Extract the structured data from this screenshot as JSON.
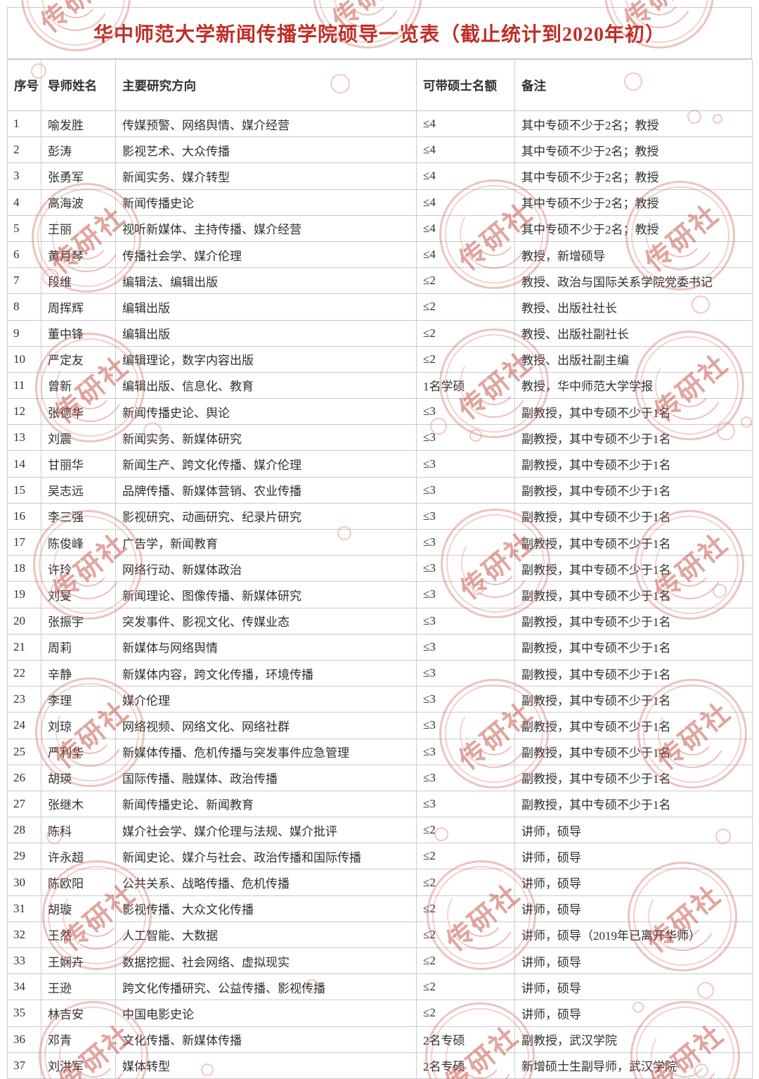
{
  "title": "华中师范大学新闻传播学院硕导一览表（截止统计到2020年初）",
  "colors": {
    "title_red": "#bf2e26",
    "watermark_pink": "#d3685e",
    "border_gray": "#cbcbcb",
    "body_text": "#303030"
  },
  "watermark": {
    "stamp_text": "传研社"
  },
  "table": {
    "headers": [
      "序号",
      "导师姓名",
      "主要研究方向",
      "可带硕士名额",
      "备注"
    ],
    "rows": [
      [
        "1",
        "喻发胜",
        "传媒预警、网络舆情、媒介经营",
        "≤4",
        "其中专硕不少于2名；教授"
      ],
      [
        "2",
        "彭涛",
        "影视艺术、大众传播",
        "≤4",
        "其中专硕不少于2名；教授"
      ],
      [
        "3",
        "张勇军",
        "新闻实务、媒介转型",
        "≤4",
        "其中专硕不少于2名；教授"
      ],
      [
        "4",
        "高海波",
        "新闻传播史论",
        "≤4",
        "其中专硕不少于2名；教授"
      ],
      [
        "5",
        "王丽",
        "视听新媒体、主持传播、媒介经营",
        "≤4",
        "其中专硕不少于2名；教授"
      ],
      [
        "6",
        "黄月琴",
        "传播社会学、媒介伦理",
        "≤4",
        "教授，新增硕导"
      ],
      [
        "7",
        "段维",
        "编辑法、编辑出版",
        "≤2",
        "教授、政治与国际关系学院党委书记"
      ],
      [
        "8",
        "周挥辉",
        "编辑出版",
        "≤2",
        "教授、出版社社长"
      ],
      [
        "9",
        "董中锋",
        "编辑出版",
        "≤2",
        "教授、出版社副社长"
      ],
      [
        "10",
        "严定友",
        "编辑理论，数字内容出版",
        "≤2",
        "教授、出版社副主编"
      ],
      [
        "11",
        "曾新",
        "编辑出版、信息化、教育",
        "1名学硕",
        "教授，华中师范大学学报"
      ],
      [
        "12",
        "张德华",
        "新闻传播史论、舆论",
        "≤3",
        "副教授，其中专硕不少于1名"
      ],
      [
        "13",
        "刘震",
        "新闻实务、新媒体研究",
        "≤3",
        "副教授，其中专硕不少于1名"
      ],
      [
        "14",
        "甘丽华",
        "新闻生产、跨文化传播、媒介伦理",
        "≤3",
        "副教授，其中专硕不少于1名"
      ],
      [
        "15",
        "吴志远",
        "品牌传播、新媒体营销、农业传播",
        "≤3",
        "副教授，其中专硕不少于1名"
      ],
      [
        "16",
        "李三强",
        "影视研究、动画研究、纪录片研究",
        "≤3",
        "副教授，其中专硕不少于1名"
      ],
      [
        "17",
        "陈俊峰",
        "广告学，新闻教育",
        "≤3",
        "副教授，其中专硕不少于1名"
      ],
      [
        "18",
        "许玲",
        "网络行动、新媒体政治",
        "≤3",
        "副教授，其中专硕不少于1名"
      ],
      [
        "19",
        "刘旻",
        "新闻理论、图像传播、新媒体研究",
        "≤3",
        "副教授，其中专硕不少于1名"
      ],
      [
        "20",
        "张振宇",
        "突发事件、影视文化、传媒业态",
        "≤3",
        "副教授，其中专硕不少于1名"
      ],
      [
        "21",
        "周莉",
        "新媒体与网络舆情",
        "≤3",
        "副教授，其中专硕不少于1名"
      ],
      [
        "22",
        "辛静",
        "新媒体内容，跨文化传播，环境传播",
        "≤3",
        "副教授，其中专硕不少于1名"
      ],
      [
        "23",
        "李理",
        "媒介伦理",
        "≤3",
        "副教授，其中专硕不少于1名"
      ],
      [
        "24",
        "刘琼",
        "网络视频、网络文化、网络社群",
        "≤3",
        "副教授，其中专硕不少于1名"
      ],
      [
        "25",
        "严利华",
        "新媒体传播、危机传播与突发事件应急管理",
        "≤3",
        "副教授，其中专硕不少于1名"
      ],
      [
        "26",
        "胡瑛",
        "国际传播、融媒体、政治传播",
        "≤3",
        "副教授，其中专硕不少于1名"
      ],
      [
        "27",
        "张继木",
        "新闻传播史论、新闻教育",
        "≤3",
        "副教授，其中专硕不少于1名"
      ],
      [
        "28",
        "陈科",
        "媒介社会学、媒介伦理与法规、媒介批评",
        "≤2",
        "讲师，硕导"
      ],
      [
        "29",
        "许永超",
        "新闻史论、媒介与社会、政治传播和国际传播",
        "≤2",
        "讲师，硕导"
      ],
      [
        "30",
        "陈欧阳",
        "公共关系、战略传播、危机传播",
        "≤2",
        "讲师，硕导"
      ],
      [
        "31",
        "胡璇",
        "影视传播、大众文化传播",
        "≤2",
        "讲师，硕导"
      ],
      [
        "32",
        "王然",
        "人工智能、大数据",
        "≤2",
        "讲师，硕导（2019年已离开华师）"
      ],
      [
        "33",
        "王娴卉",
        "数据挖掘、社会网络、虚拟现实",
        "≤2",
        "讲师，硕导"
      ],
      [
        "34",
        "王逊",
        "跨文化传播研究、公益传播、影视传播",
        "≤2",
        "讲师，硕导"
      ],
      [
        "35",
        "林吉安",
        "中国电影史论",
        "≤2",
        "讲师，硕导"
      ],
      [
        "36",
        "邓青",
        "文化传播、新媒体传播",
        "2名专硕",
        "副教授，武汉学院"
      ],
      [
        "37",
        "刘洪军",
        "媒体转型",
        "2名专硕",
        "新增硕士生副导师，武汉学院"
      ]
    ]
  }
}
